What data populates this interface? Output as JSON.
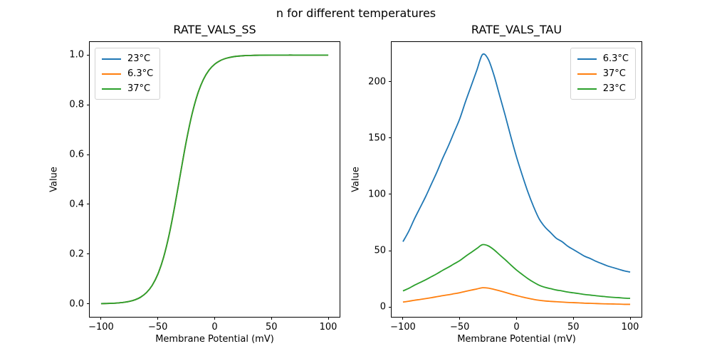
{
  "figure": {
    "suptitle": "n for different temperatures",
    "background": "#ffffff",
    "text_color": "#000000"
  },
  "chart_data": [
    {
      "type": "line",
      "title": "RATE_VALS_SS",
      "xlabel": "Membrane Potential (mV)",
      "ylabel": "Value",
      "xlim": [
        -110,
        110
      ],
      "ylim": [
        -0.0525,
        1.0525
      ],
      "grid": false,
      "xticks": [
        -100,
        -50,
        0,
        50,
        100
      ],
      "xtick_labels": [
        "−100",
        "−50",
        "0",
        "50",
        "100"
      ],
      "yticks": [
        0.0,
        0.2,
        0.4,
        0.6,
        0.8,
        1.0
      ],
      "ytick_labels": [
        "0.0",
        "0.2",
        "0.4",
        "0.6",
        "0.8",
        "1.0"
      ],
      "legend_position": "upper-left",
      "x": [
        -100,
        -95,
        -90,
        -85,
        -80,
        -75,
        -70,
        -65,
        -60,
        -55,
        -50,
        -45,
        -40,
        -35,
        -30,
        -25,
        -20,
        -15,
        -10,
        -5,
        0,
        5,
        10,
        15,
        20,
        25,
        30,
        35,
        40,
        45,
        50,
        55,
        60,
        65,
        70,
        75,
        80,
        85,
        90,
        95,
        100
      ],
      "series": [
        {
          "name": "23°C",
          "color": "#1f77b4",
          "values": [
            0.0007,
            0.0012,
            0.002,
            0.0034,
            0.0057,
            0.0096,
            0.0162,
            0.0271,
            0.0451,
            0.074,
            0.1192,
            0.1863,
            0.2794,
            0.3963,
            0.5263,
            0.6529,
            0.761,
            0.8434,
            0.9012,
            0.9392,
            0.9631,
            0.9779,
            0.9868,
            0.9922,
            0.9954,
            0.9972,
            0.9984,
            0.999,
            0.9994,
            0.9997,
            0.9998,
            0.9999,
            0.9999,
            1.0,
            1.0,
            1.0,
            1.0,
            1.0,
            1.0,
            1.0,
            1.0
          ]
        },
        {
          "name": "6.3°C",
          "color": "#ff7f0e",
          "values": [
            0.0007,
            0.0012,
            0.002,
            0.0034,
            0.0057,
            0.0096,
            0.0162,
            0.0271,
            0.0451,
            0.074,
            0.1192,
            0.1863,
            0.2794,
            0.3963,
            0.5263,
            0.6529,
            0.761,
            0.8434,
            0.9012,
            0.9392,
            0.9631,
            0.9779,
            0.9868,
            0.9922,
            0.9954,
            0.9972,
            0.9984,
            0.999,
            0.9994,
            0.9997,
            0.9998,
            0.9999,
            0.9999,
            1.0,
            1.0,
            1.0,
            1.0,
            1.0,
            1.0,
            1.0,
            1.0
          ]
        },
        {
          "name": "37°C",
          "color": "#2ca02c",
          "values": [
            0.0007,
            0.0012,
            0.002,
            0.0034,
            0.0057,
            0.0096,
            0.0162,
            0.0271,
            0.0451,
            0.074,
            0.1192,
            0.1863,
            0.2794,
            0.3963,
            0.5263,
            0.6529,
            0.761,
            0.8434,
            0.9012,
            0.9392,
            0.9631,
            0.9779,
            0.9868,
            0.9922,
            0.9954,
            0.9972,
            0.9984,
            0.999,
            0.9994,
            0.9997,
            0.9998,
            0.9999,
            0.9999,
            1.0,
            1.0,
            1.0,
            1.0,
            1.0,
            1.0,
            1.0,
            1.0
          ]
        }
      ]
    },
    {
      "type": "line",
      "title": "RATE_VALS_TAU",
      "xlabel": "Membrane Potential (mV)",
      "ylabel": "Value",
      "xlim": [
        -110,
        110
      ],
      "ylim": [
        -8.7,
        235.1
      ],
      "grid": false,
      "xticks": [
        -100,
        -50,
        0,
        50,
        100
      ],
      "xtick_labels": [
        "−100",
        "−50",
        "0",
        "50",
        "100"
      ],
      "yticks": [
        0,
        50,
        100,
        150,
        200
      ],
      "ytick_labels": [
        "0",
        "50",
        "100",
        "150",
        "200"
      ],
      "legend_position": "upper-right",
      "x": [
        -100,
        -95,
        -90,
        -85,
        -80,
        -75,
        -70,
        -65,
        -60,
        -55,
        -50,
        -45,
        -40,
        -35,
        -30,
        -25,
        -20,
        -15,
        -10,
        -5,
        0,
        5,
        10,
        15,
        20,
        25,
        30,
        35,
        40,
        45,
        50,
        55,
        60,
        65,
        70,
        75,
        80,
        85,
        90,
        95,
        100
      ],
      "series": [
        {
          "name": "6.3°C",
          "color": "#1f77b4",
          "values": [
            58,
            67,
            78,
            88,
            98,
            109,
            120,
            132,
            143,
            155,
            167,
            182,
            196,
            210,
            224,
            220,
            206,
            188,
            170,
            151,
            133,
            117,
            102,
            89,
            78,
            71,
            66,
            61,
            58,
            54,
            51,
            48,
            45,
            43,
            40.5,
            38.5,
            36.5,
            35,
            33.5,
            32,
            31
          ]
        },
        {
          "name": "37°C",
          "color": "#ff7f0e",
          "values": [
            4.4,
            5.1,
            6.0,
            6.7,
            7.5,
            8.3,
            9.2,
            10.1,
            10.9,
            11.8,
            12.7,
            13.9,
            15.0,
            16.0,
            17.1,
            16.8,
            15.7,
            14.4,
            13.0,
            11.5,
            10.2,
            8.9,
            7.8,
            6.8,
            6.0,
            5.4,
            5.0,
            4.7,
            4.4,
            4.1,
            3.9,
            3.7,
            3.4,
            3.3,
            3.1,
            2.9,
            2.8,
            2.7,
            2.6,
            2.4,
            2.4
          ]
        },
        {
          "name": "23°C",
          "color": "#2ca02c",
          "values": [
            14.3,
            16.5,
            19.3,
            21.7,
            24.2,
            26.9,
            29.6,
            32.6,
            35.3,
            38.3,
            41.2,
            44.9,
            48.4,
            51.9,
            55.3,
            54.3,
            50.9,
            46.4,
            42.0,
            37.3,
            32.8,
            28.9,
            25.2,
            22.0,
            19.3,
            17.5,
            16.3,
            15.1,
            14.3,
            13.3,
            12.6,
            11.9,
            11.1,
            10.6,
            10.0,
            9.5,
            9.0,
            8.6,
            8.3,
            7.9,
            7.7
          ]
        }
      ]
    }
  ]
}
